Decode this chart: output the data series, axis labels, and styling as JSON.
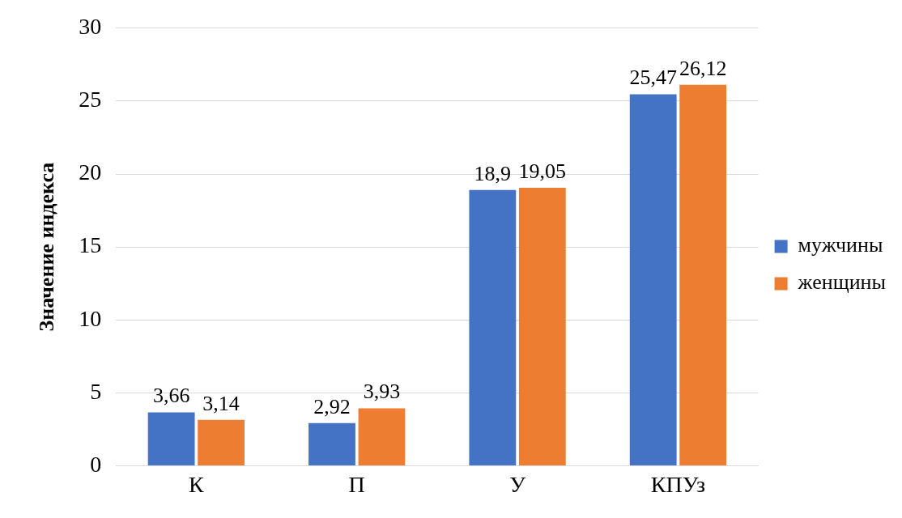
{
  "chart_data": {
    "type": "bar",
    "ylabel": "Значение индекса",
    "categories": [
      "К",
      "П",
      "У",
      "КПУз"
    ],
    "series": [
      {
        "name": "мужчины",
        "color": "#4472c4",
        "values": [
          3.66,
          2.92,
          18.9,
          25.47
        ],
        "value_labels": [
          "3,66",
          "2,92",
          "18,9",
          "25,47"
        ]
      },
      {
        "name": "женщины",
        "color": "#ed7d31",
        "values": [
          3.14,
          3.93,
          19.05,
          26.12
        ],
        "value_labels": [
          "3,14",
          "3,93",
          "19,05",
          "26,12"
        ]
      }
    ],
    "ylim": [
      0,
      30
    ],
    "yticks": [
      0,
      5,
      10,
      15,
      20,
      25,
      30
    ],
    "grid": "y",
    "legend": "right"
  }
}
